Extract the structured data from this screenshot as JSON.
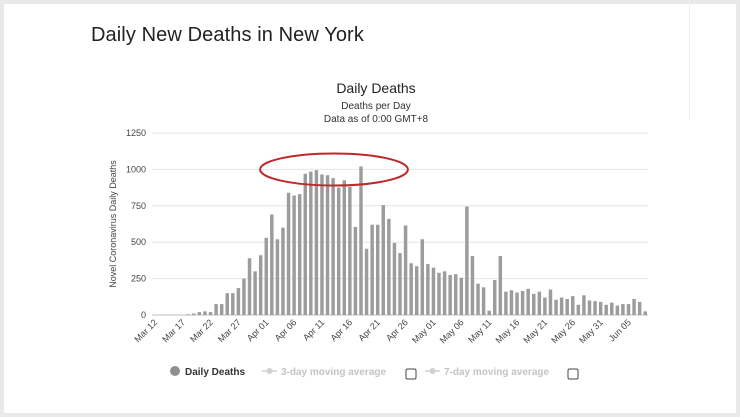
{
  "page": {
    "heading": "Daily New Deaths in New York"
  },
  "chart_data": {
    "type": "bar",
    "title": "Daily Deaths",
    "subtitle_lines": [
      "Deaths per Day",
      "Data as of 0:00 GMT+8"
    ],
    "ylabel": "Novel Coronavirus Daily Deaths",
    "xlabel": "",
    "ylim": [
      0,
      1250
    ],
    "yticks": [
      0,
      250,
      500,
      750,
      1000,
      1250
    ],
    "grid": true,
    "x_tick_labels": [
      "Mar 12",
      "Mar 17",
      "Mar 22",
      "Mar 27",
      "Apr 01",
      "Apr 06",
      "Apr 11",
      "Apr 16",
      "Apr 21",
      "Apr 26",
      "May 01",
      "May 06",
      "May 11",
      "May 16",
      "May 21",
      "May 26",
      "May 31",
      "Jun 05"
    ],
    "bar_color": "#9c9c9c",
    "highlight_color": "#c0282d",
    "highlight_range": [
      "Apr 06",
      "Apr 16"
    ],
    "series": [
      {
        "name": "Daily Deaths",
        "start_date": "Mar 12",
        "values": [
          0,
          0,
          0,
          0,
          0,
          0,
          5,
          10,
          20,
          25,
          20,
          75,
          75,
          150,
          150,
          185,
          250,
          390,
          300,
          410,
          530,
          690,
          520,
          600,
          840,
          820,
          830,
          970,
          985,
          995,
          965,
          960,
          940,
          875,
          925,
          880,
          605,
          1020,
          455,
          620,
          620,
          755,
          660,
          495,
          425,
          615,
          355,
          335,
          520,
          350,
          325,
          290,
          300,
          275,
          280,
          255,
          745,
          405,
          215,
          190,
          30,
          240,
          405,
          160,
          170,
          155,
          165,
          180,
          145,
          160,
          120,
          175,
          105,
          120,
          110,
          130,
          70,
          135,
          100,
          95,
          90,
          70,
          85,
          65,
          75,
          75,
          110,
          90,
          25
        ]
      }
    ],
    "legend": {
      "placement": "bottom",
      "items": [
        {
          "label": "Daily Deaths",
          "state": "on"
        },
        {
          "label": "3-day moving average",
          "state": "off"
        },
        {
          "label": "7-day moving average",
          "state": "off"
        }
      ]
    }
  }
}
